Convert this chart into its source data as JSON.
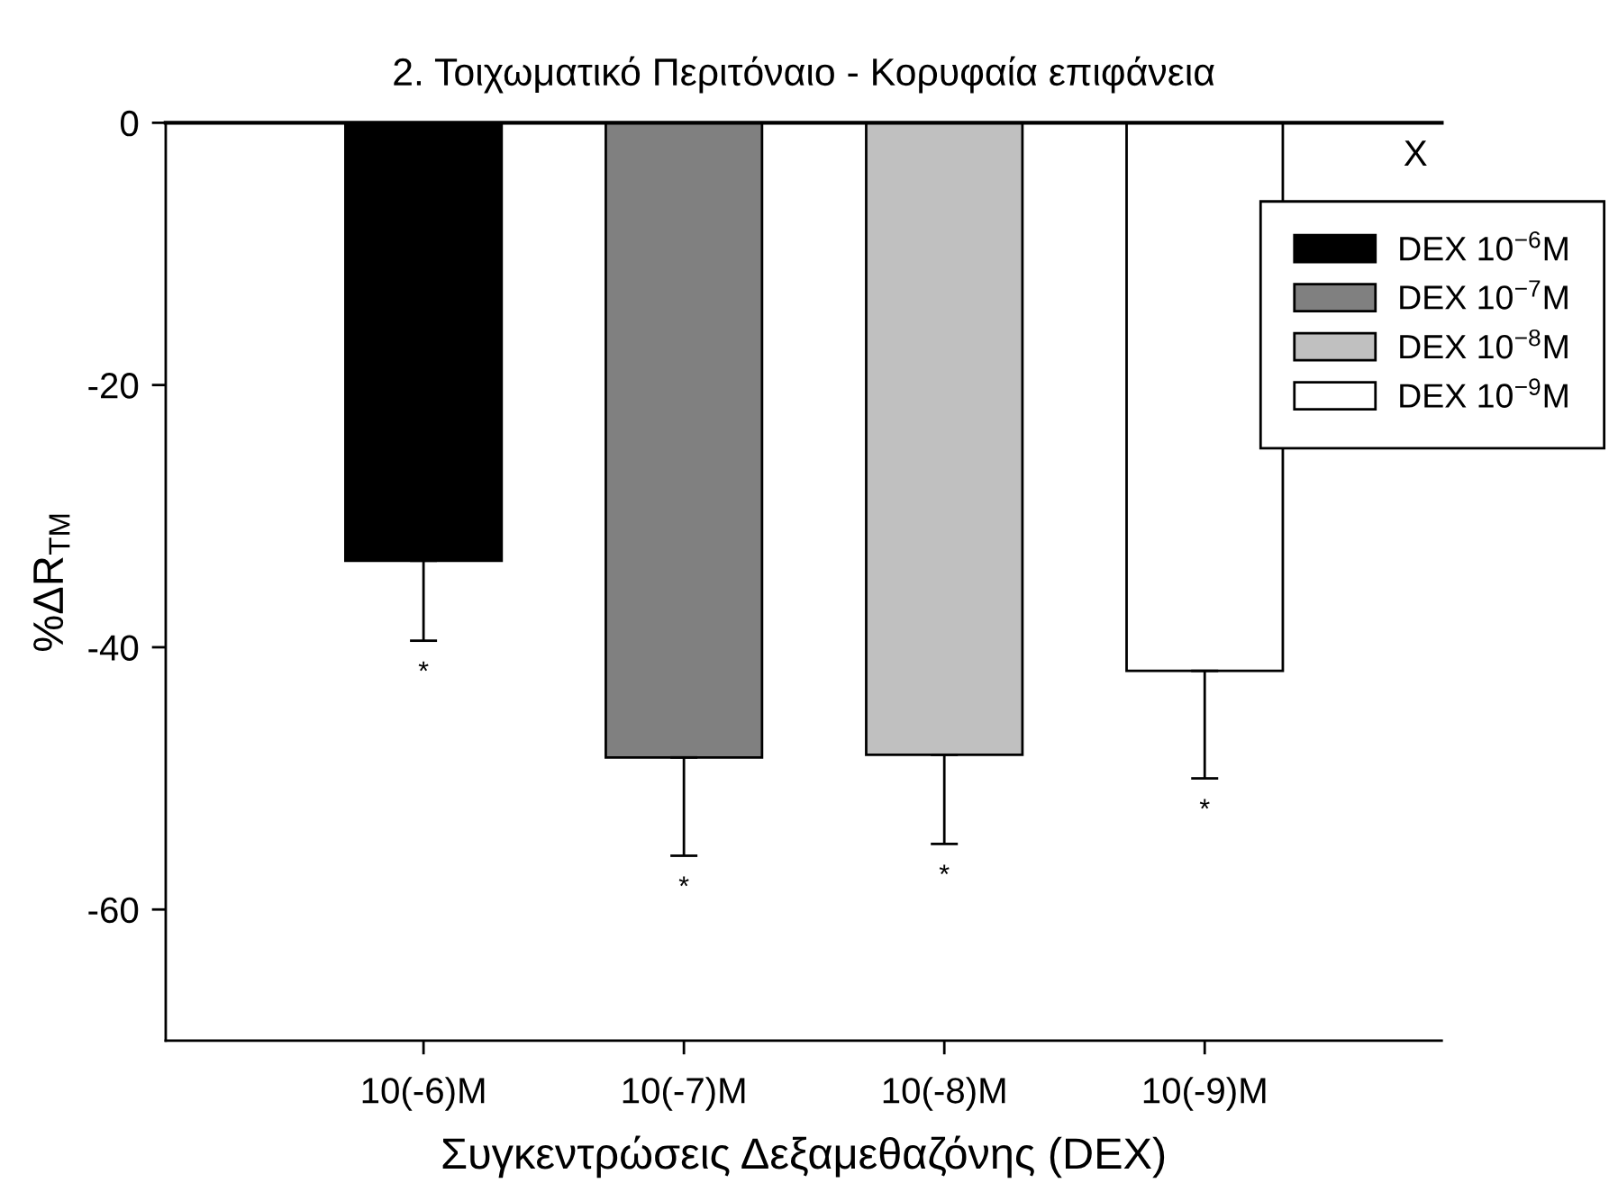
{
  "chart_data": {
    "type": "bar",
    "title": "2. Τοιχωματικό Περιτόναιο - Κορυφαία επιφάνεια",
    "xlabel": "Συγκεντρώσεις Δεξαμεθαζόνης (DEX)",
    "ylabel": "%ΔR$_{TM}$",
    "categories": [
      "10(-6)M",
      "10(-7)M",
      "10(-8)M",
      "10(-9)M"
    ],
    "series": [
      {
        "name": "DEX 10$^{−6}$M",
        "color": "#000000",
        "values": [
          -33.4,
          null,
          null,
          null
        ],
        "errors": [
          [
            -39.5,
            -33.4
          ],
          null,
          null,
          null
        ]
      },
      {
        "name": "DEX 10$^{−7}$M",
        "color": "#808080",
        "values": [
          null,
          -48.4,
          null,
          null
        ],
        "errors": [
          null,
          [
            -55.9,
            -48.4
          ],
          null,
          null
        ]
      },
      {
        "name": "DEX 10$^{−8}$M",
        "color": "#c0c0c0",
        "values": [
          null,
          null,
          -48.2,
          null
        ],
        "errors": [
          null,
          null,
          [
            -55.0,
            -48.2
          ],
          null
        ]
      },
      {
        "name": "DEX 10$^{−9}$M",
        "color": "#ffffff",
        "values": [
          null,
          null,
          null,
          -41.8
        ],
        "errors": [
          null,
          null,
          null,
          [
            -50.0,
            -41.8
          ]
        ]
      }
    ],
    "ylim": [
      -70,
      0
    ],
    "yticks": [
      -60,
      -40,
      -20,
      0
    ],
    "legend": "top right",
    "annotations": [
      "X",
      "*",
      "*",
      "*",
      "*"
    ]
  }
}
